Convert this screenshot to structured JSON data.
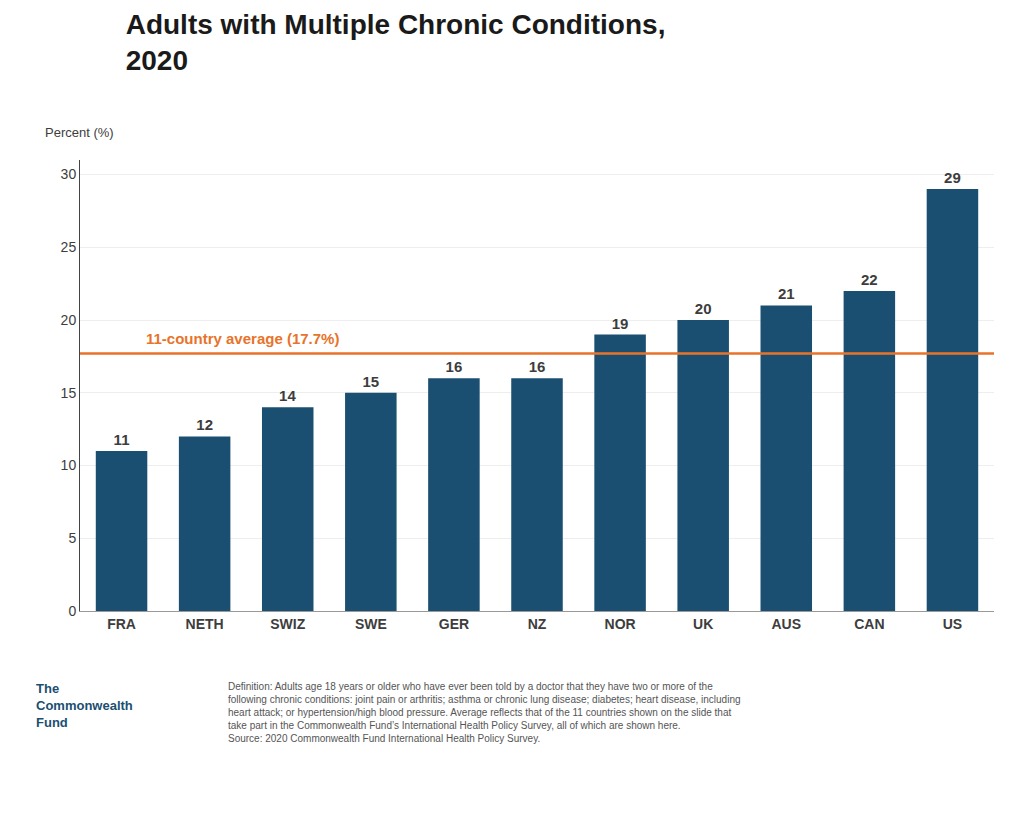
{
  "chart_data": {
    "type": "bar",
    "title": "Adults with Multiple Chronic Conditions,\n2020",
    "ylabel": "Percent (%)",
    "categories": [
      "FRA",
      "NETH",
      "SWIZ",
      "SWE",
      "GER",
      "NZ",
      "NOR",
      "UK",
      "AUS",
      "CAN",
      "US"
    ],
    "values": [
      11,
      12,
      14,
      15,
      16,
      16,
      19,
      20,
      21,
      22,
      29
    ],
    "color": "#1a4f72",
    "data_labels": true,
    "ylim": [
      0,
      31
    ],
    "yticks": [
      0,
      5,
      10,
      15,
      20,
      25,
      30
    ],
    "grid": true,
    "reference_line": {
      "value": 17.7,
      "label": "11-country average (17.7%)",
      "color": "#e8732a"
    },
    "annotations": [
      {
        "text": "Definition: Adults age 18 years or older who have ever been told by a doctor that they have two or more of the\nfollowing chronic conditions: joint pain or arthritis; asthma or chronic lung disease; diabetes; heart disease, including\nheart attack; or hypertension/high blood pressure. Average reflects that of the 11 countries shown on the slide that\ntake part in the Commonwealth Fund’s International Health Policy Survey, all of which are shown here.\nSource: 2020 Commonwealth Fund International Health Policy Survey."
      },
      {
        "text": "The\nCommonwealth\nFund",
        "color": "#1a4f72"
      }
    ]
  }
}
